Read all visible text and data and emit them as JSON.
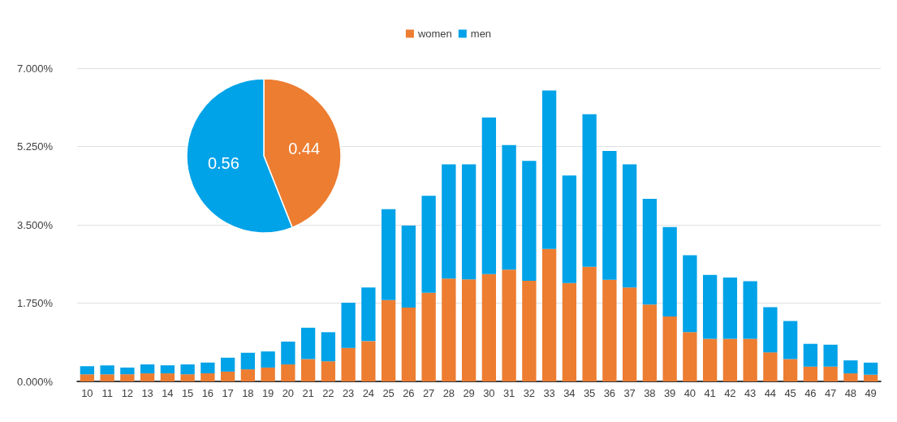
{
  "chart_data": [
    {
      "type": "bar",
      "stacked": true,
      "legend": "top",
      "grid": "y",
      "categories": [
        "10",
        "11",
        "12",
        "13",
        "14",
        "15",
        "16",
        "17",
        "18",
        "19",
        "20",
        "21",
        "22",
        "23",
        "24",
        "25",
        "26",
        "27",
        "28",
        "29",
        "30",
        "31",
        "32",
        "33",
        "34",
        "35",
        "36",
        "37",
        "38",
        "39",
        "40",
        "41",
        "42",
        "43",
        "44",
        "45",
        "46",
        "47",
        "48",
        "49"
      ],
      "series": [
        {
          "name": "women",
          "color": "#ed7d31",
          "values": [
            0.16,
            0.16,
            0.16,
            0.18,
            0.18,
            0.16,
            0.18,
            0.22,
            0.27,
            0.31,
            0.38,
            0.5,
            0.45,
            0.75,
            0.9,
            1.82,
            1.65,
            1.98,
            2.3,
            2.28,
            2.4,
            2.5,
            2.25,
            2.96,
            2.2,
            2.56,
            2.27,
            2.1,
            1.72,
            1.45,
            1.1,
            0.95,
            0.95,
            0.95,
            0.65,
            0.5,
            0.33,
            0.33,
            0.18,
            0.15
          ]
        },
        {
          "name": "men",
          "color": "#00a2e8",
          "values": [
            0.18,
            0.2,
            0.15,
            0.2,
            0.18,
            0.22,
            0.24,
            0.31,
            0.37,
            0.36,
            0.51,
            0.7,
            0.65,
            1.01,
            1.2,
            2.03,
            1.83,
            2.17,
            2.55,
            2.57,
            3.5,
            2.78,
            2.68,
            3.54,
            2.4,
            3.41,
            2.88,
            2.75,
            2.36,
            2,
            1.72,
            1.43,
            1.37,
            1.29,
            1.01,
            0.85,
            0.51,
            0.49,
            0.29,
            0.27
          ]
        }
      ],
      "ylim": [
        0,
        7
      ],
      "yticks": [
        {
          "value": 0,
          "label": "0.000%"
        },
        {
          "value": 1.75,
          "label": "1.750%"
        },
        {
          "value": 3.5,
          "label": "3.500%"
        },
        {
          "value": 5.25,
          "label": "5.250%"
        },
        {
          "value": 7,
          "label": "7.000%"
        }
      ]
    },
    {
      "type": "pie",
      "categories": [
        null,
        null
      ],
      "values": [
        0.44,
        0.56
      ],
      "colors": [
        "#ed7d31",
        "#00a2e8"
      ],
      "data_labels": true
    }
  ]
}
